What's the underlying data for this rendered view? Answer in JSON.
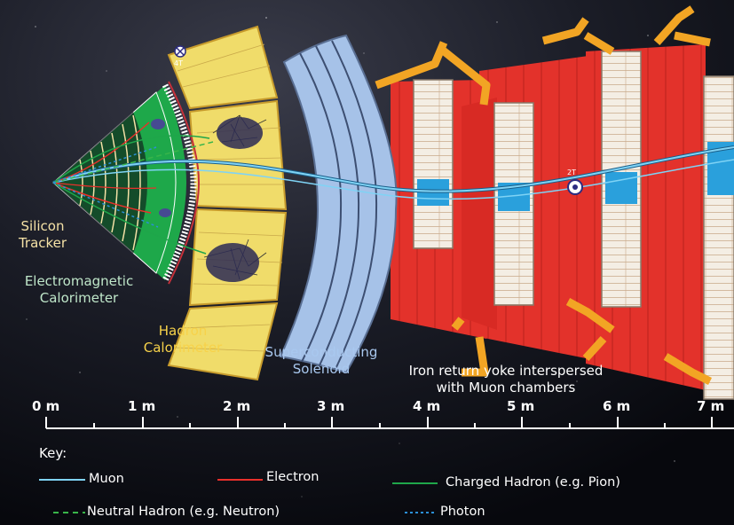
{
  "colors": {
    "muon": "#7fd3f5",
    "electron": "#e8302b",
    "charged_hadron": "#1fa64a",
    "neutral_hadron": "#39b54a",
    "photon": "#2b8fd6",
    "silicon_tracker_text": "#f4e1a6",
    "ecal_text": "#bfe6c9",
    "hcal_text": "#f7d24a",
    "solenoid_text": "#a9c8ef",
    "yoke_text": "#ffffff",
    "iron_yoke": "#e3322b",
    "orange_support": "#f2a524",
    "hcal_fill": "#f0dc6a",
    "solenoid_fill": "#a6c2e8",
    "ecal_fill": "#1ea84a"
  },
  "labels": {
    "silicon_tracker": [
      "Silicon",
      "Tracker"
    ],
    "ecal": [
      "Electromagnetic",
      "Calorimeter"
    ],
    "hcal": [
      "Hadron",
      "Calorimeter"
    ],
    "solenoid": [
      "Superconducting",
      "Solenoid"
    ],
    "yoke": [
      "Iron return yoke interspersed",
      "with Muon chambers"
    ]
  },
  "field": {
    "inner": "4T",
    "outer": "2T"
  },
  "scale": {
    "ticks": [
      "0 m",
      "1 m",
      "2 m",
      "3 m",
      "4 m",
      "5 m",
      "6 m",
      "7 m"
    ]
  },
  "key": {
    "title": "Key:",
    "muon": "Muon",
    "electron": "Electron",
    "charged_hadron": "Charged Hadron (e.g. Pion)",
    "neutral_hadron": "Neutral Hadron (e.g. Neutron)",
    "photon": "Photon"
  }
}
